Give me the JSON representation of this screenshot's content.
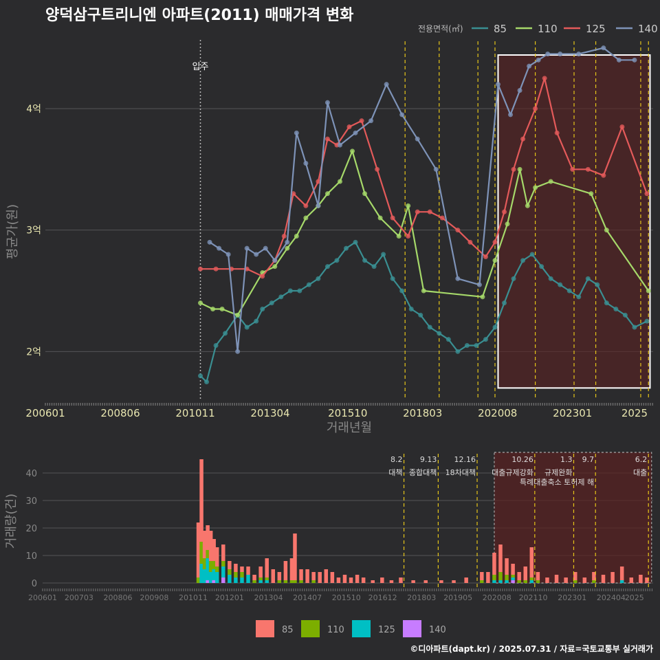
{
  "title": "양덕삼구트리니엔 아파트(2011) 매매가격 변화",
  "credit": "©디아파트(dapt.kr) / 2025.07.31 / 자료=국토교통부 실거래가",
  "colors": {
    "background": "#2b2b2d",
    "grid": "#555558",
    "85": "#3a8f92",
    "110": "#a6d96a",
    "125": "#e45a5a",
    "140": "#7e93b8",
    "vol85": "#f8766d",
    "vol110": "#7cae00",
    "vol125": "#00bfc4",
    "vol140": "#c77cff",
    "policy": "#e6c619",
    "highlight_fill": "#5a2121"
  },
  "chart_data": [
    {
      "type": "line",
      "name": "price",
      "title": "양덕삼구트리니엔 아파트(2011) 매매가격 변화",
      "xlabel": "거래년월",
      "ylabel": "평균가(원)",
      "x_tick_labels": [
        "200601",
        "200806",
        "201011",
        "201304",
        "201510",
        "201803",
        "202008",
        "202301",
        "2025"
      ],
      "y_tick_labels": [
        "2억",
        "3억",
        "4억"
      ],
      "y_ticks": [
        2,
        3,
        4
      ],
      "ylim": [
        1.6,
        4.6
      ],
      "x_unit": "decimal year",
      "xlim": [
        2006.0,
        2025.6
      ],
      "legend_title": "전용면적(㎡)",
      "legend": [
        "85",
        "110",
        "125",
        "140"
      ],
      "move_in_label": "입주",
      "move_in_x": 2011.0,
      "policy_x": [
        2017.6,
        2018.7,
        2019.95,
        2020.5,
        2021.8,
        2023.05,
        2023.75,
        2025.2,
        2025.45
      ],
      "highlight_x": [
        2020.6,
        2025.5
      ],
      "highlight_y": [
        1.7,
        4.6
      ],
      "series": [
        {
          "name": "85",
          "x": [
            2011.0,
            2011.2,
            2011.5,
            2011.8,
            2012.2,
            2012.5,
            2012.8,
            2013.0,
            2013.3,
            2013.6,
            2013.9,
            2014.2,
            2014.5,
            2014.8,
            2015.1,
            2015.4,
            2015.7,
            2016.0,
            2016.3,
            2016.6,
            2016.9,
            2017.2,
            2017.5,
            2017.8,
            2018.1,
            2018.4,
            2018.7,
            2019.0,
            2019.3,
            2019.6,
            2019.9,
            2020.2,
            2020.5,
            2020.8,
            2021.1,
            2021.4,
            2021.7,
            2022.0,
            2022.3,
            2022.6,
            2022.9,
            2023.2,
            2023.5,
            2023.8,
            2024.1,
            2024.4,
            2024.7,
            2025.0,
            2025.4
          ],
          "values": [
            1.8,
            1.75,
            2.05,
            2.15,
            2.3,
            2.2,
            2.25,
            2.35,
            2.4,
            2.45,
            2.5,
            2.5,
            2.55,
            2.6,
            2.7,
            2.75,
            2.85,
            2.9,
            2.75,
            2.7,
            2.8,
            2.6,
            2.5,
            2.35,
            2.3,
            2.2,
            2.15,
            2.1,
            2.0,
            2.05,
            2.05,
            2.1,
            2.2,
            2.4,
            2.6,
            2.75,
            2.8,
            2.7,
            2.6,
            2.55,
            2.5,
            2.45,
            2.6,
            2.55,
            2.4,
            2.35,
            2.3,
            2.2,
            2.25
          ]
        },
        {
          "name": "110",
          "x": [
            2011.0,
            2011.4,
            2011.7,
            2012.2,
            2013.0,
            2013.4,
            2013.8,
            2014.1,
            2014.4,
            2014.8,
            2015.1,
            2015.5,
            2015.9,
            2016.3,
            2016.8,
            2017.4,
            2017.7,
            2018.2,
            2020.1,
            2020.5,
            2020.9,
            2021.3,
            2021.55,
            2021.8,
            2022.3,
            2023.6,
            2024.1,
            2025.45
          ],
          "values": [
            2.4,
            2.35,
            2.35,
            2.3,
            2.65,
            2.7,
            2.85,
            2.95,
            3.1,
            3.2,
            3.3,
            3.4,
            3.65,
            3.3,
            3.1,
            2.95,
            3.2,
            2.5,
            2.45,
            2.75,
            3.05,
            3.5,
            3.2,
            3.35,
            3.4,
            3.3,
            3.0,
            2.5
          ]
        },
        {
          "name": "125",
          "x": [
            2011.0,
            2011.5,
            2012.0,
            2012.5,
            2013.0,
            2013.4,
            2013.7,
            2014.0,
            2014.4,
            2014.8,
            2015.1,
            2015.4,
            2015.8,
            2016.2,
            2016.7,
            2017.2,
            2017.7,
            2018.0,
            2018.4,
            2018.8,
            2019.3,
            2019.7,
            2020.2,
            2020.5,
            2020.8,
            2021.1,
            2021.4,
            2021.8,
            2022.1,
            2022.5,
            2023.0,
            2023.5,
            2024.0,
            2024.6,
            2025.4
          ],
          "values": [
            2.68,
            2.68,
            2.68,
            2.68,
            2.62,
            2.75,
            2.95,
            3.3,
            3.2,
            3.4,
            3.75,
            3.7,
            3.85,
            3.9,
            3.5,
            3.1,
            2.95,
            3.15,
            3.15,
            3.1,
            3.0,
            2.9,
            2.78,
            2.9,
            3.15,
            3.5,
            3.75,
            4.0,
            4.25,
            3.8,
            3.5,
            3.5,
            3.45,
            3.85,
            3.3
          ]
        },
        {
          "name": "140",
          "x": [
            2011.3,
            2011.6,
            2011.9,
            2012.2,
            2012.5,
            2012.8,
            2013.1,
            2013.4,
            2013.8,
            2014.1,
            2014.4,
            2014.8,
            2015.1,
            2015.5,
            2016.0,
            2016.5,
            2017.0,
            2017.5,
            2018.0,
            2018.6,
            2019.3,
            2020.0,
            2020.6,
            2021.0,
            2021.3,
            2021.6,
            2021.9,
            2022.2,
            2022.6,
            2023.2,
            2024.0,
            2024.5,
            2025.0
          ],
          "values": [
            2.9,
            2.85,
            2.8,
            2.0,
            2.85,
            2.8,
            2.85,
            2.75,
            2.9,
            3.8,
            3.55,
            3.2,
            4.05,
            3.7,
            3.8,
            3.9,
            4.2,
            3.95,
            3.75,
            3.5,
            2.6,
            2.55,
            4.2,
            3.95,
            4.15,
            4.35,
            4.4,
            4.45,
            4.45,
            4.45,
            4.5,
            4.4,
            4.4
          ]
        }
      ]
    },
    {
      "type": "bar",
      "name": "volume",
      "ylabel": "거래량(건)",
      "y_tick_labels": [
        "0",
        "10",
        "20",
        "30",
        "40"
      ],
      "ylim": [
        0,
        47
      ],
      "x_tick_labels": [
        "200601",
        "200703",
        "200806",
        "200908",
        "201011",
        "201201",
        "201304",
        "201407",
        "201510",
        "201612",
        "201803",
        "201905",
        "202008",
        "202110",
        "202301",
        "202404",
        "2025"
      ],
      "x_unit": "decimal year",
      "xlim": [
        2006.0,
        2025.6
      ],
      "legend": [
        "85",
        "110",
        "125",
        "140"
      ],
      "policy_events": [
        {
          "x": 2017.6,
          "date": "8.2",
          "text": "대책"
        },
        {
          "x": 2018.7,
          "date": "9.13",
          "text": "종합대책"
        },
        {
          "x": 2019.95,
          "date": "12.16",
          "text": "18차대책"
        },
        {
          "x": 2021.8,
          "date": "10.26",
          "text": "대출규제강화"
        },
        {
          "x": 2023.05,
          "date": "1.3",
          "text": "규제완화"
        },
        {
          "x": 2023.75,
          "date": "9.7",
          "text": "특례대출축소 토허제 해"
        },
        {
          "x": 2025.45,
          "date": "6.2",
          "text": "대출"
        }
      ],
      "bars": [
        {
          "x": 2011.0,
          "v85": 20,
          "v110": 2,
          "v125": 0,
          "v140": 0
        },
        {
          "x": 2011.1,
          "v85": 30,
          "v110": 8,
          "v125": 7,
          "v140": 0
        },
        {
          "x": 2011.2,
          "v85": 10,
          "v110": 4,
          "v125": 5,
          "v140": 0
        },
        {
          "x": 2011.3,
          "v85": 9,
          "v110": 3,
          "v125": 8,
          "v140": 1
        },
        {
          "x": 2011.4,
          "v85": 11,
          "v110": 4,
          "v125": 4,
          "v140": 0
        },
        {
          "x": 2011.5,
          "v85": 8,
          "v110": 3,
          "v125": 4,
          "v140": 1
        },
        {
          "x": 2011.6,
          "v85": 7,
          "v110": 2,
          "v125": 4,
          "v140": 0
        },
        {
          "x": 2011.8,
          "v85": 6,
          "v110": 2,
          "v125": 4,
          "v140": 2
        },
        {
          "x": 2012.0,
          "v85": 3,
          "v110": 2,
          "v125": 3,
          "v140": 0
        },
        {
          "x": 2012.2,
          "v85": 3,
          "v110": 2,
          "v125": 2,
          "v140": 0
        },
        {
          "x": 2012.4,
          "v85": 2,
          "v110": 2,
          "v125": 2,
          "v140": 0
        },
        {
          "x": 2012.6,
          "v85": 3,
          "v110": 0,
          "v125": 3,
          "v140": 0
        },
        {
          "x": 2012.8,
          "v85": 2,
          "v110": 1,
          "v125": 0,
          "v140": 0
        },
        {
          "x": 2013.0,
          "v85": 4,
          "v110": 1,
          "v125": 1,
          "v140": 0
        },
        {
          "x": 2013.2,
          "v85": 7,
          "v110": 1,
          "v125": 1,
          "v140": 0
        },
        {
          "x": 2013.4,
          "v85": 5,
          "v110": 0,
          "v125": 0,
          "v140": 0
        },
        {
          "x": 2013.6,
          "v85": 3,
          "v110": 1,
          "v125": 0,
          "v140": 0
        },
        {
          "x": 2013.8,
          "v85": 7,
          "v110": 1,
          "v125": 0,
          "v140": 0
        },
        {
          "x": 2014.0,
          "v85": 8,
          "v110": 1,
          "v125": 0,
          "v140": 0
        },
        {
          "x": 2014.1,
          "v85": 17,
          "v110": 1,
          "v125": 0,
          "v140": 0
        },
        {
          "x": 2014.3,
          "v85": 4,
          "v110": 1,
          "v125": 0,
          "v140": 0
        },
        {
          "x": 2014.5,
          "v85": 5,
          "v110": 0,
          "v125": 0,
          "v140": 0
        },
        {
          "x": 2014.7,
          "v85": 3,
          "v110": 1,
          "v125": 0,
          "v140": 0
        },
        {
          "x": 2014.9,
          "v85": 4,
          "v110": 0,
          "v125": 0,
          "v140": 0
        },
        {
          "x": 2015.1,
          "v85": 5,
          "v110": 0,
          "v125": 0,
          "v140": 0
        },
        {
          "x": 2015.3,
          "v85": 4,
          "v110": 0,
          "v125": 0,
          "v140": 0
        },
        {
          "x": 2015.5,
          "v85": 2,
          "v110": 0,
          "v125": 0,
          "v140": 0
        },
        {
          "x": 2015.7,
          "v85": 3,
          "v110": 0,
          "v125": 0,
          "v140": 0
        },
        {
          "x": 2015.9,
          "v85": 2,
          "v110": 0,
          "v125": 0,
          "v140": 0
        },
        {
          "x": 2016.1,
          "v85": 3,
          "v110": 0,
          "v125": 0,
          "v140": 0
        },
        {
          "x": 2016.3,
          "v85": 2,
          "v110": 0,
          "v125": 0,
          "v140": 0
        },
        {
          "x": 2016.6,
          "v85": 1,
          "v110": 0,
          "v125": 0,
          "v140": 0
        },
        {
          "x": 2016.9,
          "v85": 2,
          "v110": 0,
          "v125": 0,
          "v140": 0
        },
        {
          "x": 2017.2,
          "v85": 1,
          "v110": 0,
          "v125": 0,
          "v140": 0
        },
        {
          "x": 2017.5,
          "v85": 2,
          "v110": 0,
          "v125": 0,
          "v140": 0
        },
        {
          "x": 2017.9,
          "v85": 1,
          "v110": 0,
          "v125": 0,
          "v140": 0
        },
        {
          "x": 2018.3,
          "v85": 1,
          "v110": 0,
          "v125": 0,
          "v140": 0
        },
        {
          "x": 2018.8,
          "v85": 1,
          "v110": 0,
          "v125": 0,
          "v140": 0
        },
        {
          "x": 2019.2,
          "v85": 1,
          "v110": 0,
          "v125": 0,
          "v140": 0
        },
        {
          "x": 2019.6,
          "v85": 2,
          "v110": 0,
          "v125": 0,
          "v140": 0
        },
        {
          "x": 2020.1,
          "v85": 3,
          "v110": 1,
          "v125": 0,
          "v140": 0
        },
        {
          "x": 2020.3,
          "v85": 4,
          "v110": 0,
          "v125": 0,
          "v140": 0
        },
        {
          "x": 2020.5,
          "v85": 8,
          "v110": 2,
          "v125": 1,
          "v140": 0
        },
        {
          "x": 2020.7,
          "v85": 10,
          "v110": 3,
          "v125": 1,
          "v140": 0
        },
        {
          "x": 2020.9,
          "v85": 6,
          "v110": 2,
          "v125": 1,
          "v140": 0
        },
        {
          "x": 2021.1,
          "v85": 4,
          "v110": 1,
          "v125": 1,
          "v140": 1
        },
        {
          "x": 2021.3,
          "v85": 3,
          "v110": 1,
          "v125": 0,
          "v140": 0
        },
        {
          "x": 2021.5,
          "v85": 5,
          "v110": 1,
          "v125": 0,
          "v140": 0
        },
        {
          "x": 2021.7,
          "v85": 11,
          "v110": 1,
          "v125": 1,
          "v140": 0
        },
        {
          "x": 2021.9,
          "v85": 3,
          "v110": 1,
          "v125": 0,
          "v140": 0
        },
        {
          "x": 2022.2,
          "v85": 2,
          "v110": 0,
          "v125": 0,
          "v140": 0
        },
        {
          "x": 2022.5,
          "v85": 3,
          "v110": 0,
          "v125": 0,
          "v140": 0
        },
        {
          "x": 2022.8,
          "v85": 2,
          "v110": 0,
          "v125": 0,
          "v140": 0
        },
        {
          "x": 2023.1,
          "v85": 3,
          "v110": 1,
          "v125": 0,
          "v140": 0
        },
        {
          "x": 2023.4,
          "v85": 2,
          "v110": 0,
          "v125": 0,
          "v140": 0
        },
        {
          "x": 2023.7,
          "v85": 3,
          "v110": 1,
          "v125": 0,
          "v140": 0
        },
        {
          "x": 2024.0,
          "v85": 3,
          "v110": 0,
          "v125": 0,
          "v140": 0
        },
        {
          "x": 2024.3,
          "v85": 4,
          "v110": 0,
          "v125": 0,
          "v140": 0
        },
        {
          "x": 2024.6,
          "v85": 5,
          "v110": 0,
          "v125": 1,
          "v140": 0
        },
        {
          "x": 2024.9,
          "v85": 2,
          "v110": 0,
          "v125": 0,
          "v140": 0
        },
        {
          "x": 2025.2,
          "v85": 3,
          "v110": 0,
          "v125": 0,
          "v140": 0
        },
        {
          "x": 2025.4,
          "v85": 2,
          "v110": 0,
          "v125": 0,
          "v140": 0
        }
      ]
    }
  ]
}
